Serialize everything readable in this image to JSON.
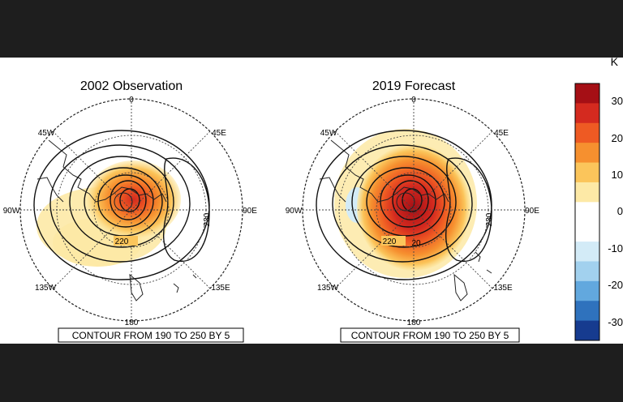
{
  "maps": [
    {
      "title": "2002 Observation",
      "labels": {
        "top": "0",
        "bottom": "180",
        "left": "90W",
        "right": "90E",
        "ul": "45W",
        "ur": "45E",
        "ll": "135W",
        "lr": "135E"
      },
      "contour_labels": [
        "220",
        "230"
      ],
      "caption": "CONTOUR FROM 190 TO 250 BY 5"
    },
    {
      "title": "2019 Forecast",
      "labels": {
        "top": "0",
        "bottom": "180",
        "left": "90W",
        "right": "90E",
        "ul": "45W",
        "ur": "45E",
        "ll": "135W",
        "lr": "135E"
      },
      "contour_labels": [
        "220",
        "20",
        "230"
      ],
      "caption": "CONTOUR FROM 190 TO 250 BY 5"
    }
  ],
  "colorbar": {
    "unit": "K",
    "ticks": [
      "30",
      "20",
      "10",
      "0",
      "-10",
      "-20",
      "-30"
    ],
    "colors": [
      "#a50f15",
      "#d42a1f",
      "#ee5a23",
      "#f6902f",
      "#fbc55b",
      "#fde9a6",
      "#ffffff",
      "#ffffff",
      "#d3ebf7",
      "#a2d1ee",
      "#62a8de",
      "#2f72bd",
      "#163b8f"
    ]
  }
}
